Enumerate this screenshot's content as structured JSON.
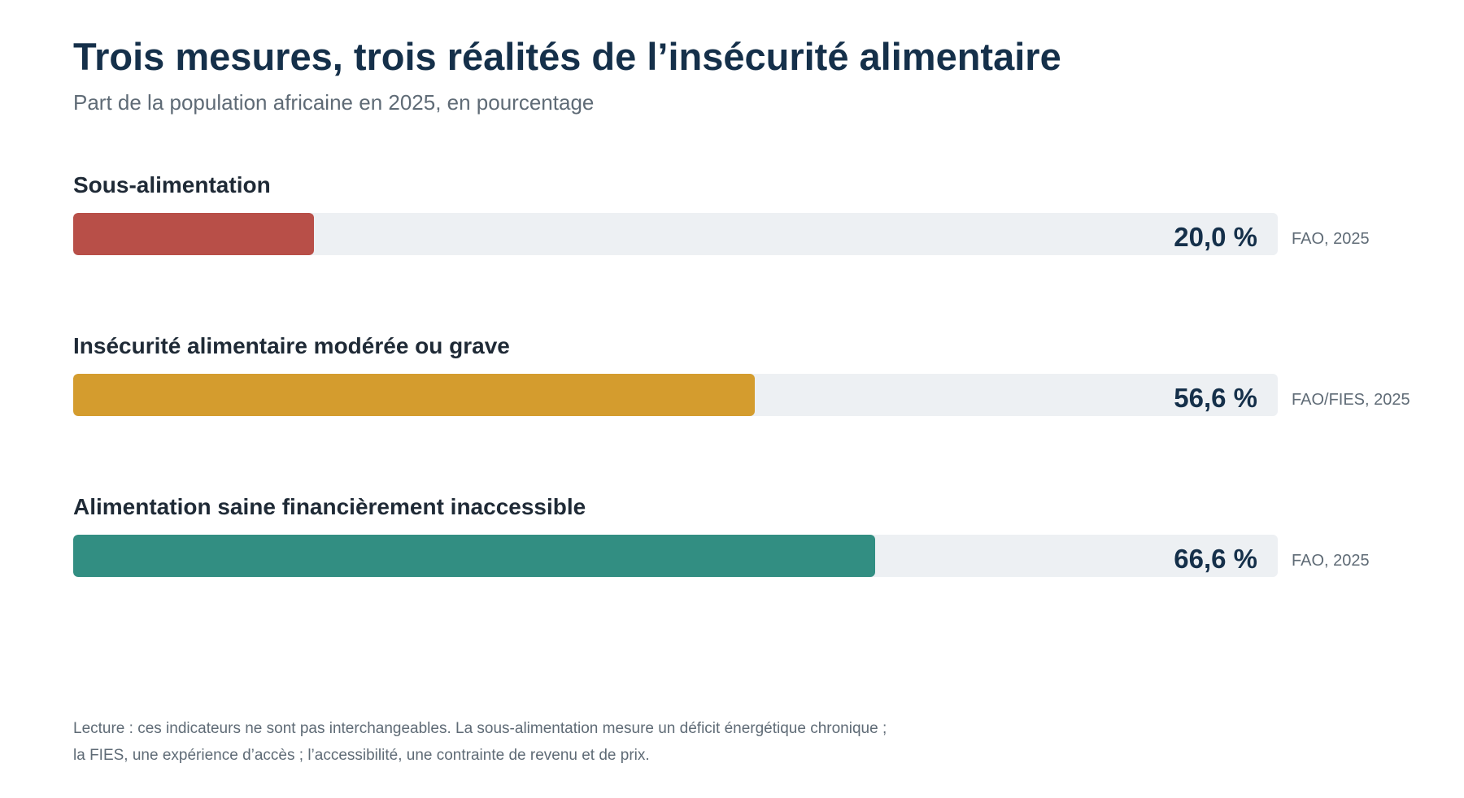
{
  "chart_data": {
    "type": "bar",
    "orientation": "horizontal",
    "title": "Trois mesures, trois réalités de l’insécurité alimentaire",
    "subtitle": "Part de la population africaine en 2025, en pourcentage",
    "xlim": [
      0,
      100
    ],
    "grid": false,
    "series": [
      {
        "label": "Sous-alimentation",
        "value": 20.0,
        "value_label": "20,0 %",
        "source": "FAO, 2025",
        "color": "#b84f48"
      },
      {
        "label": "Insécurité alimentaire modérée ou grave",
        "value": 56.6,
        "value_label": "56,6 %",
        "source": "FAO/FIES, 2025",
        "color": "#d49c2e"
      },
      {
        "label": "Alimentation saine financièrement inaccessible",
        "value": 66.6,
        "value_label": "66,6 %",
        "source": "FAO, 2025",
        "color": "#328e82"
      }
    ],
    "note_lines": [
      "Lecture : ces indicateurs ne sont pas interchangeables. La sous-alimentation mesure un déficit énergétique chronique ;",
      "la FIES, une expérience d’accès ; l’accessibilité, une contrainte de revenu et de prix."
    ]
  }
}
